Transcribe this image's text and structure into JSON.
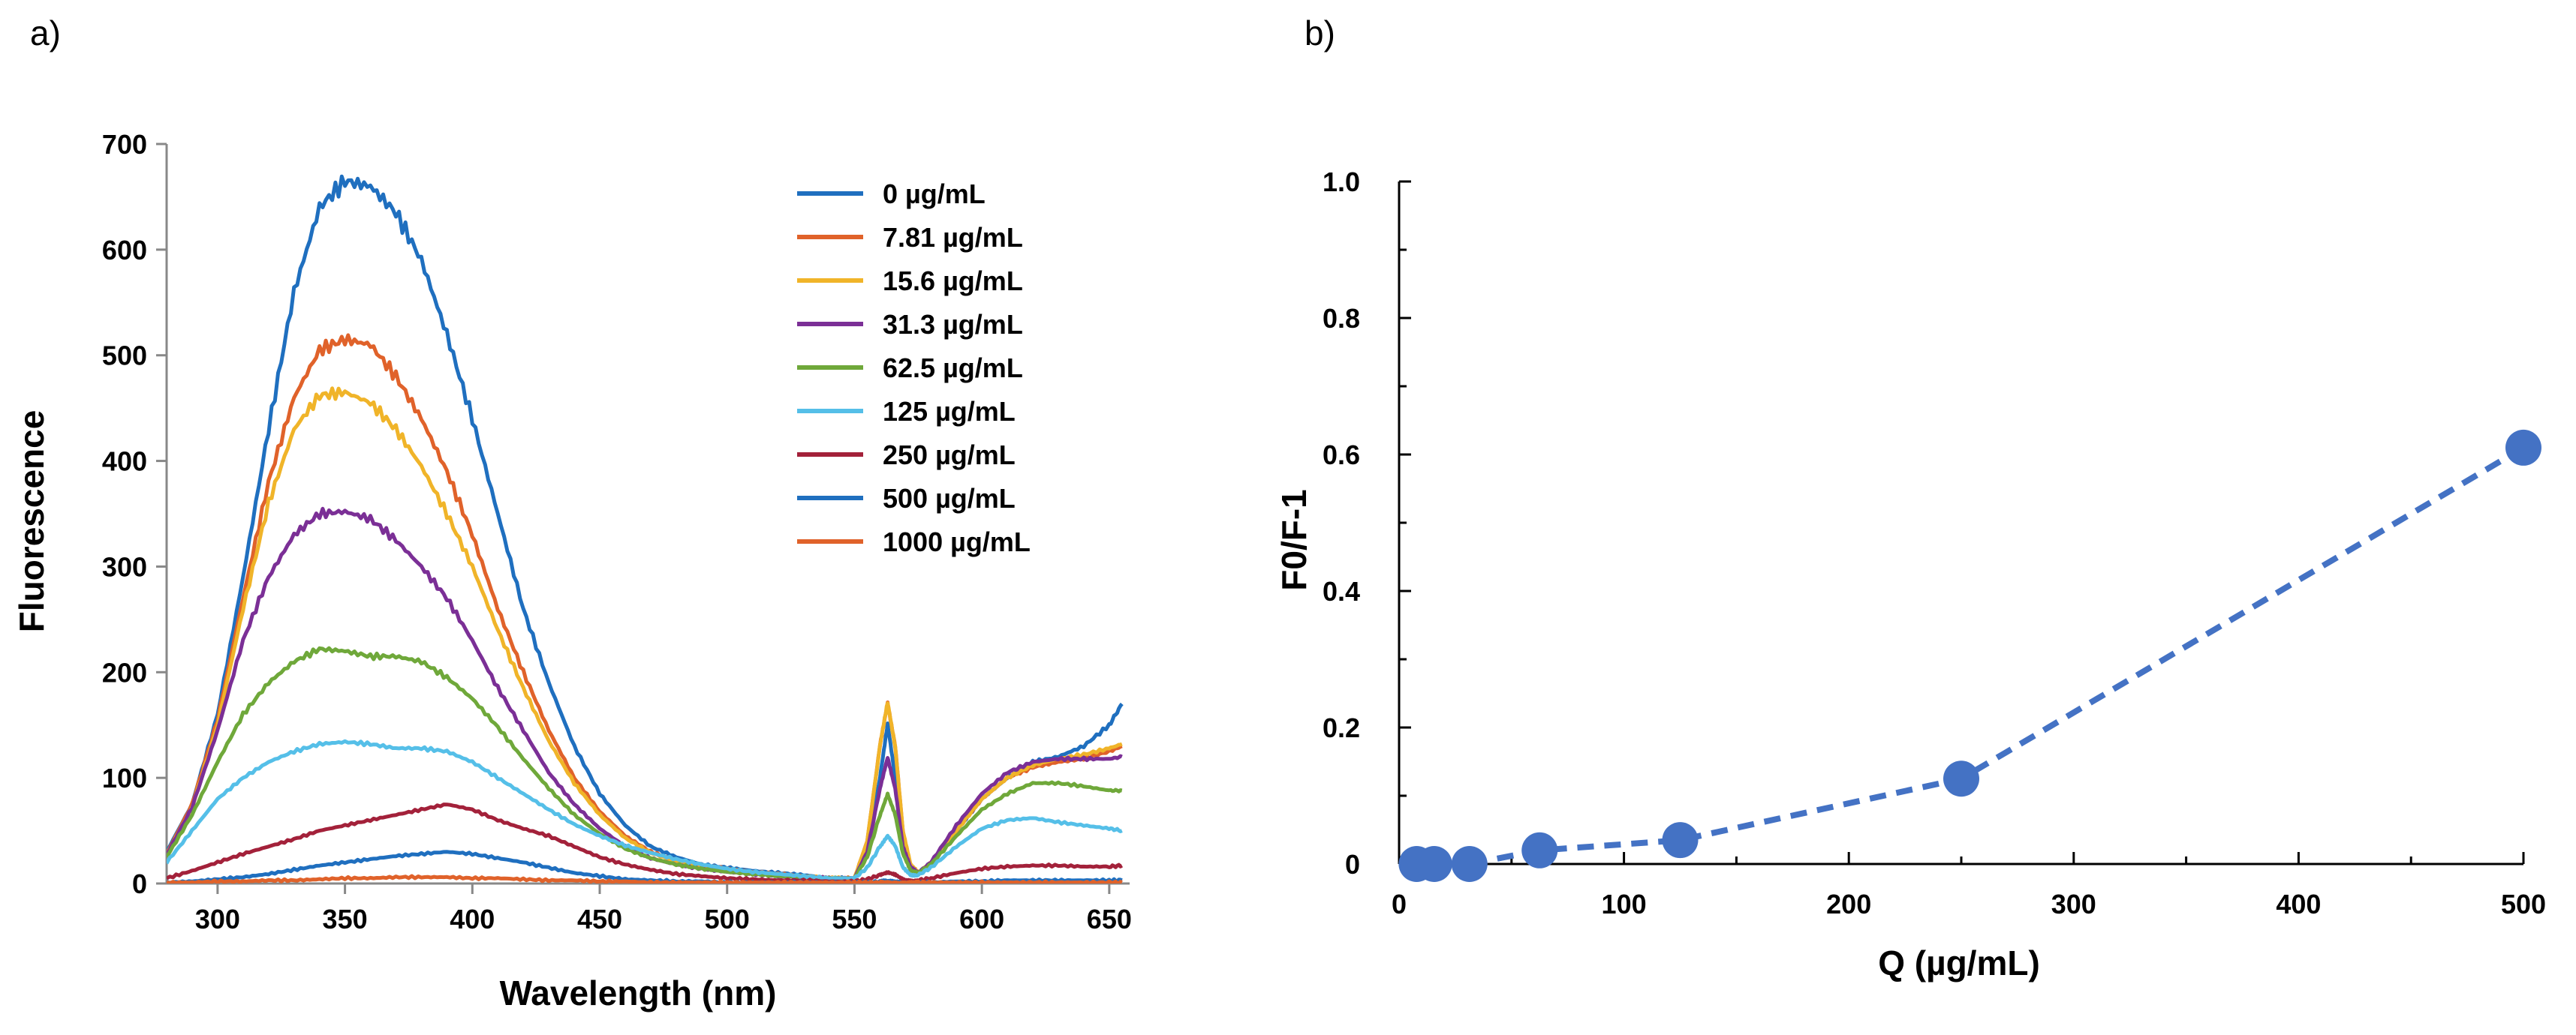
{
  "chart_data": [
    {
      "panel_label": "a)",
      "type": "line",
      "title": "",
      "xlabel": "Wavelength (nm)",
      "ylabel": "Fluorescence",
      "xlim": [
        280,
        658
      ],
      "ylim": [
        0,
        700
      ],
      "xticks": [
        300,
        350,
        400,
        450,
        500,
        550,
        600,
        650
      ],
      "yticks": [
        0,
        100,
        200,
        300,
        400,
        500,
        600,
        700
      ],
      "legend_position": "top-right",
      "x": [
        280,
        290,
        300,
        310,
        320,
        330,
        340,
        350,
        360,
        370,
        380,
        390,
        400,
        410,
        420,
        430,
        440,
        450,
        460,
        470,
        480,
        490,
        500,
        510,
        520,
        530,
        540,
        550,
        555,
        560,
        563,
        566,
        569,
        572,
        575,
        580,
        590,
        600,
        610,
        620,
        630,
        640,
        650,
        655
      ],
      "series": [
        {
          "name": "0 µg/mL",
          "color": "#1f6fbf",
          "values": [
            30,
            75,
            160,
            290,
            430,
            560,
            640,
            665,
            660,
            635,
            590,
            520,
            440,
            350,
            260,
            190,
            130,
            85,
            55,
            35,
            25,
            18,
            15,
            12,
            10,
            8,
            5,
            5,
            30,
            100,
            150,
            100,
            40,
            15,
            10,
            20,
            50,
            80,
            100,
            115,
            120,
            130,
            150,
            170
          ]
        },
        {
          "name": "7.81 µg/mL",
          "color": "#e0622a",
          "values": [
            28,
            75,
            155,
            270,
            380,
            460,
            505,
            515,
            510,
            480,
            440,
            390,
            330,
            260,
            200,
            145,
            100,
            68,
            45,
            30,
            22,
            17,
            14,
            11,
            9,
            7,
            5,
            5,
            40,
            130,
            170,
            130,
            50,
            18,
            10,
            20,
            50,
            80,
            100,
            110,
            115,
            118,
            125,
            130
          ]
        },
        {
          "name": "15.6 µg/mL",
          "color": "#f0b429",
          "values": [
            27,
            72,
            150,
            260,
            360,
            430,
            462,
            465,
            455,
            430,
            395,
            350,
            300,
            240,
            185,
            135,
            95,
            65,
            43,
            29,
            21,
            16,
            13,
            10,
            8,
            7,
            5,
            5,
            40,
            130,
            172,
            130,
            50,
            18,
            10,
            20,
            50,
            80,
            100,
            112,
            118,
            122,
            128,
            132
          ]
        },
        {
          "name": "31.3 µg/mL",
          "color": "#7b2f96",
          "values": [
            27,
            72,
            145,
            230,
            290,
            330,
            350,
            352,
            345,
            325,
            300,
            270,
            230,
            185,
            145,
            105,
            75,
            52,
            35,
            24,
            18,
            14,
            11,
            9,
            7,
            6,
            5,
            5,
            30,
            90,
            120,
            90,
            35,
            15,
            10,
            20,
            55,
            85,
            105,
            115,
            118,
            118,
            118,
            120
          ]
        },
        {
          "name": "62.5 µg/mL",
          "color": "#6fa83a",
          "values": [
            25,
            65,
            115,
            160,
            190,
            210,
            222,
            220,
            215,
            215,
            210,
            195,
            175,
            148,
            118,
            90,
            65,
            47,
            33,
            24,
            18,
            14,
            11,
            9,
            7,
            6,
            5,
            5,
            25,
            65,
            85,
            65,
            28,
            12,
            10,
            18,
            45,
            70,
            85,
            95,
            95,
            92,
            88,
            88
          ]
        },
        {
          "name": "125 µg/mL",
          "color": "#55bfe8",
          "values": [
            20,
            50,
            80,
            100,
            115,
            125,
            132,
            134,
            132,
            128,
            128,
            125,
            115,
            100,
            85,
            70,
            56,
            45,
            36,
            29,
            23,
            18,
            14,
            11,
            9,
            7,
            5,
            5,
            15,
            35,
            45,
            35,
            15,
            8,
            8,
            15,
            35,
            52,
            60,
            62,
            58,
            55,
            52,
            50
          ]
        },
        {
          "name": "250 µg/mL",
          "color": "#a3213a",
          "values": [
            5,
            12,
            20,
            28,
            35,
            42,
            50,
            55,
            60,
            65,
            70,
            75,
            70,
            60,
            52,
            45,
            35,
            25,
            18,
            13,
            9,
            7,
            5,
            4,
            3,
            3,
            2,
            2,
            4,
            8,
            10,
            8,
            4,
            3,
            3,
            5,
            10,
            14,
            16,
            17,
            17,
            16,
            16,
            17
          ]
        },
        {
          "name": "500 µg/mL",
          "color": "#1f6fbf",
          "values": [
            1,
            2,
            4,
            6,
            9,
            13,
            17,
            20,
            23,
            26,
            28,
            30,
            28,
            24,
            20,
            15,
            10,
            7,
            4,
            3,
            2,
            2,
            1,
            1,
            1,
            1,
            1,
            1,
            1,
            2,
            2,
            2,
            1,
            1,
            1,
            1,
            2,
            2,
            3,
            3,
            3,
            3,
            3,
            3
          ]
        },
        {
          "name": "1000 µg/mL",
          "color": "#e0622a",
          "values": [
            1,
            1,
            2,
            2,
            3,
            3,
            4,
            5,
            5,
            6,
            6,
            6,
            5,
            5,
            4,
            3,
            3,
            2,
            2,
            1,
            1,
            1,
            1,
            1,
            1,
            1,
            1,
            1,
            1,
            1,
            1,
            1,
            1,
            1,
            1,
            1,
            1,
            1,
            1,
            1,
            1,
            1,
            1,
            1
          ]
        }
      ]
    },
    {
      "panel_label": "b)",
      "type": "scatter",
      "title": "",
      "xlabel": "Q (µg/mL)",
      "ylabel": "F0/F-1",
      "xlim": [
        0,
        500
      ],
      "ylim": [
        0,
        1.0
      ],
      "xticks": [
        0,
        100,
        200,
        300,
        400,
        500
      ],
      "yticks": [
        0,
        0.2,
        0.4,
        0.6,
        0.8,
        1.0
      ],
      "ytick_labels": [
        "0",
        "0.2",
        "0.4",
        "0.6",
        "0.8",
        "1.0"
      ],
      "series": [
        {
          "name": "F0/F-1",
          "color": "#4472c4",
          "line_style": "dashed",
          "x": [
            7.81,
            15.6,
            31.3,
            62.5,
            125,
            250,
            500
          ],
          "values": [
            0.0,
            0.0,
            0.0,
            0.02,
            0.035,
            0.125,
            0.61
          ]
        }
      ]
    }
  ]
}
